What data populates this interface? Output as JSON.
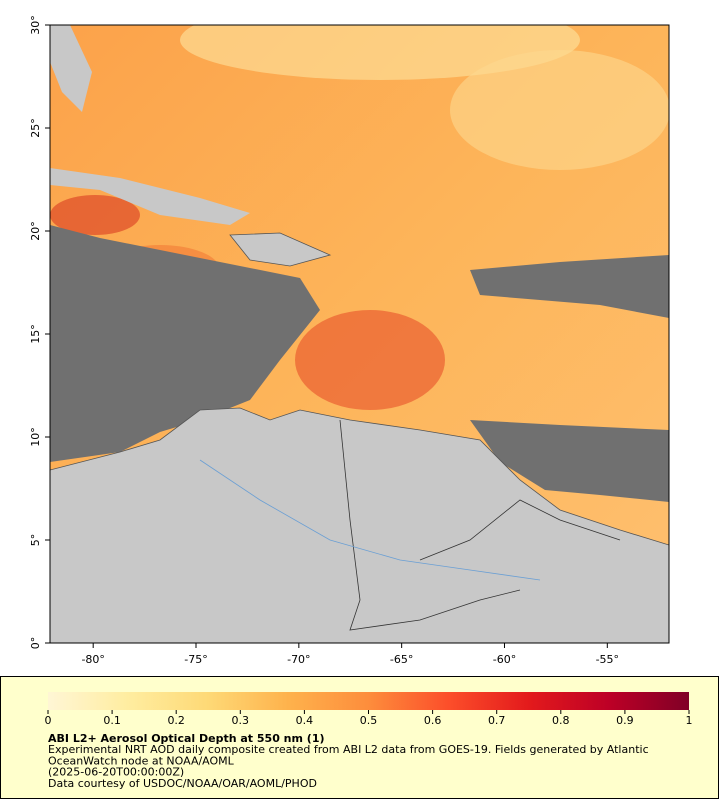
{
  "map": {
    "xlim": [
      -82.1,
      -52
    ],
    "ylim": [
      0,
      30
    ],
    "xticks": [
      {
        "value": -80,
        "label": "-80°"
      },
      {
        "value": -75,
        "label": "-75°"
      },
      {
        "value": -70,
        "label": "-70°"
      },
      {
        "value": -65,
        "label": "-65°"
      },
      {
        "value": -60,
        "label": "-60°"
      },
      {
        "value": -55,
        "label": "-55°"
      }
    ],
    "yticks": [
      {
        "value": 0,
        "label": "0°"
      },
      {
        "value": 5,
        "label": "5°"
      },
      {
        "value": 10,
        "label": "10°"
      },
      {
        "value": 15,
        "label": "15°"
      },
      {
        "value": 20,
        "label": "20°"
      },
      {
        "value": 25,
        "label": "25°"
      },
      {
        "value": 30,
        "label": "30°"
      }
    ]
  },
  "colorbar": {
    "lim": [
      0,
      1
    ],
    "ticks": [
      0,
      0.1,
      0.2,
      0.3,
      0.4,
      0.5,
      0.6,
      0.7,
      0.8,
      0.9,
      1
    ],
    "colors": [
      "#fff6d5",
      "#ffeda0",
      "#fed976",
      "#feb24c",
      "#fd8d3c",
      "#fc4e2a",
      "#e31a1c",
      "#bd0026",
      "#800026"
    ]
  },
  "caption": {
    "title": "ABI L2+ Aerosol Optical Depth at 550 nm (1)",
    "lines": [
      "Experimental NRT AOD daily composite created from ABI L2 data from GOES-19. Fields generated by Atlantic",
      "OceanWatch node at NOAA/AOML",
      "(2025-06-20T00:00:00Z)",
      "Data courtesy of USDOC/NOAA/OAR/AOML/PHOD"
    ]
  }
}
